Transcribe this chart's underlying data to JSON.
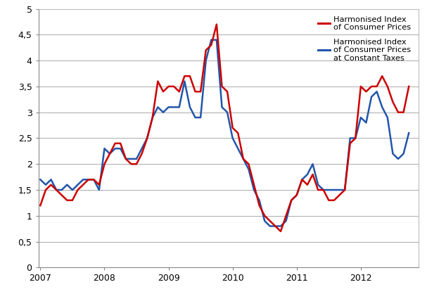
{
  "hicp": [
    1.2,
    1.5,
    1.6,
    1.5,
    1.4,
    1.3,
    1.3,
    1.5,
    1.6,
    1.7,
    1.7,
    1.6,
    2.0,
    2.2,
    2.4,
    2.4,
    2.1,
    2.0,
    2.0,
    2.2,
    2.5,
    2.9,
    3.6,
    3.4,
    3.5,
    3.5,
    3.4,
    3.7,
    3.7,
    3.4,
    3.4,
    4.2,
    4.3,
    4.7,
    3.5,
    3.4,
    2.7,
    2.6,
    2.1,
    2.0,
    1.6,
    1.2,
    1.0,
    0.9,
    0.8,
    0.7,
    1.0,
    1.3,
    1.4,
    1.7,
    1.6,
    1.8,
    1.5,
    1.5,
    1.3,
    1.3,
    1.4,
    1.5,
    2.4,
    2.5,
    3.5,
    3.4,
    3.5,
    3.5,
    3.7,
    3.5,
    3.2,
    3.0,
    3.0,
    3.5
  ],
  "hicpct": [
    1.7,
    1.6,
    1.7,
    1.5,
    1.5,
    1.6,
    1.5,
    1.6,
    1.7,
    1.7,
    1.7,
    1.5,
    2.3,
    2.2,
    2.3,
    2.3,
    2.1,
    2.1,
    2.1,
    2.3,
    2.5,
    2.9,
    3.1,
    3.0,
    3.1,
    3.1,
    3.1,
    3.6,
    3.1,
    2.9,
    2.9,
    4.0,
    4.4,
    4.4,
    3.1,
    3.0,
    2.5,
    2.3,
    2.1,
    1.9,
    1.5,
    1.3,
    0.9,
    0.8,
    0.8,
    0.8,
    0.9,
    1.3,
    1.4,
    1.7,
    1.8,
    2.0,
    1.6,
    1.5,
    1.5,
    1.5,
    1.5,
    1.5,
    2.5,
    2.5,
    2.9,
    2.8,
    3.3,
    3.4,
    3.1,
    2.9,
    2.2,
    2.1,
    2.2,
    2.6
  ],
  "hicp_color": "#cc0000",
  "hicpct_color": "#2255aa",
  "background_color": "#ffffff",
  "grid_color": "#aaaaaa",
  "ylim": [
    0,
    5
  ],
  "yticks": [
    0,
    0.5,
    1,
    1.5,
    2,
    2.5,
    3,
    3.5,
    4,
    4.5,
    5
  ],
  "ytick_labels": [
    "0",
    "0,5",
    "1",
    "1,5",
    "2",
    "2,5",
    "3",
    "3,5",
    "4",
    "4,5",
    "5"
  ],
  "xtick_labels": [
    "2007",
    "2008",
    "2009",
    "2010",
    "2011",
    "2012"
  ],
  "line_width": 1.8,
  "n_months": 70,
  "figwidth": 6.07,
  "figheight": 4.18
}
